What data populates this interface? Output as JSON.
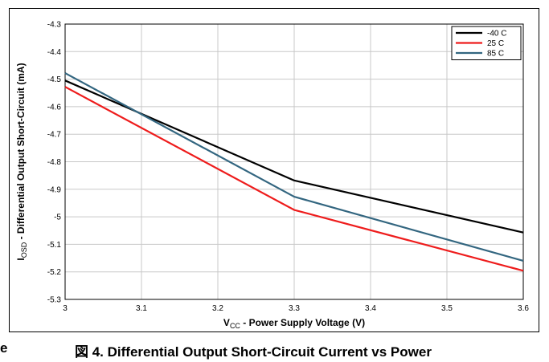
{
  "caption": {
    "prefix": "図 4. ",
    "text": "Differential Output Short-Circuit Current vs Power"
  },
  "edge_fragment": "e",
  "chart_data": {
    "type": "line",
    "title": "",
    "xlabel_main": "V",
    "xlabel_sub": "CC",
    "xlabel_rest": " - Power Supply Voltage (V)",
    "ylabel_main": "I",
    "ylabel_sub": "OSD",
    "ylabel_rest": " - Differential Output Short-Circuit (mA)",
    "xlim": [
      3,
      3.6
    ],
    "ylim": [
      -5.3,
      -4.3
    ],
    "xticks": [
      "3",
      "3.1",
      "3.2",
      "3.3",
      "3.4",
      "3.5",
      "3.6"
    ],
    "yticks": [
      "-4.3",
      "-4.4",
      "-4.5",
      "-4.6",
      "-4.7",
      "-4.8",
      "-4.9",
      "-5",
      "-5.1",
      "-5.2",
      "-5.3"
    ],
    "grid": true,
    "legend_position": "top-right",
    "series": [
      {
        "name": "-40 C",
        "color": "#000000",
        "x": [
          3,
          3.3,
          3.6
        ],
        "y": [
          -4.505,
          -4.868,
          -5.057
        ]
      },
      {
        "name": "25 C",
        "color": "#ee1c1c",
        "x": [
          3,
          3.3,
          3.6
        ],
        "y": [
          -4.528,
          -4.975,
          -5.196
        ]
      },
      {
        "name": "85 C",
        "color": "#336680",
        "x": [
          3,
          3.3,
          3.6
        ],
        "y": [
          -4.478,
          -4.927,
          -5.16
        ]
      }
    ]
  }
}
